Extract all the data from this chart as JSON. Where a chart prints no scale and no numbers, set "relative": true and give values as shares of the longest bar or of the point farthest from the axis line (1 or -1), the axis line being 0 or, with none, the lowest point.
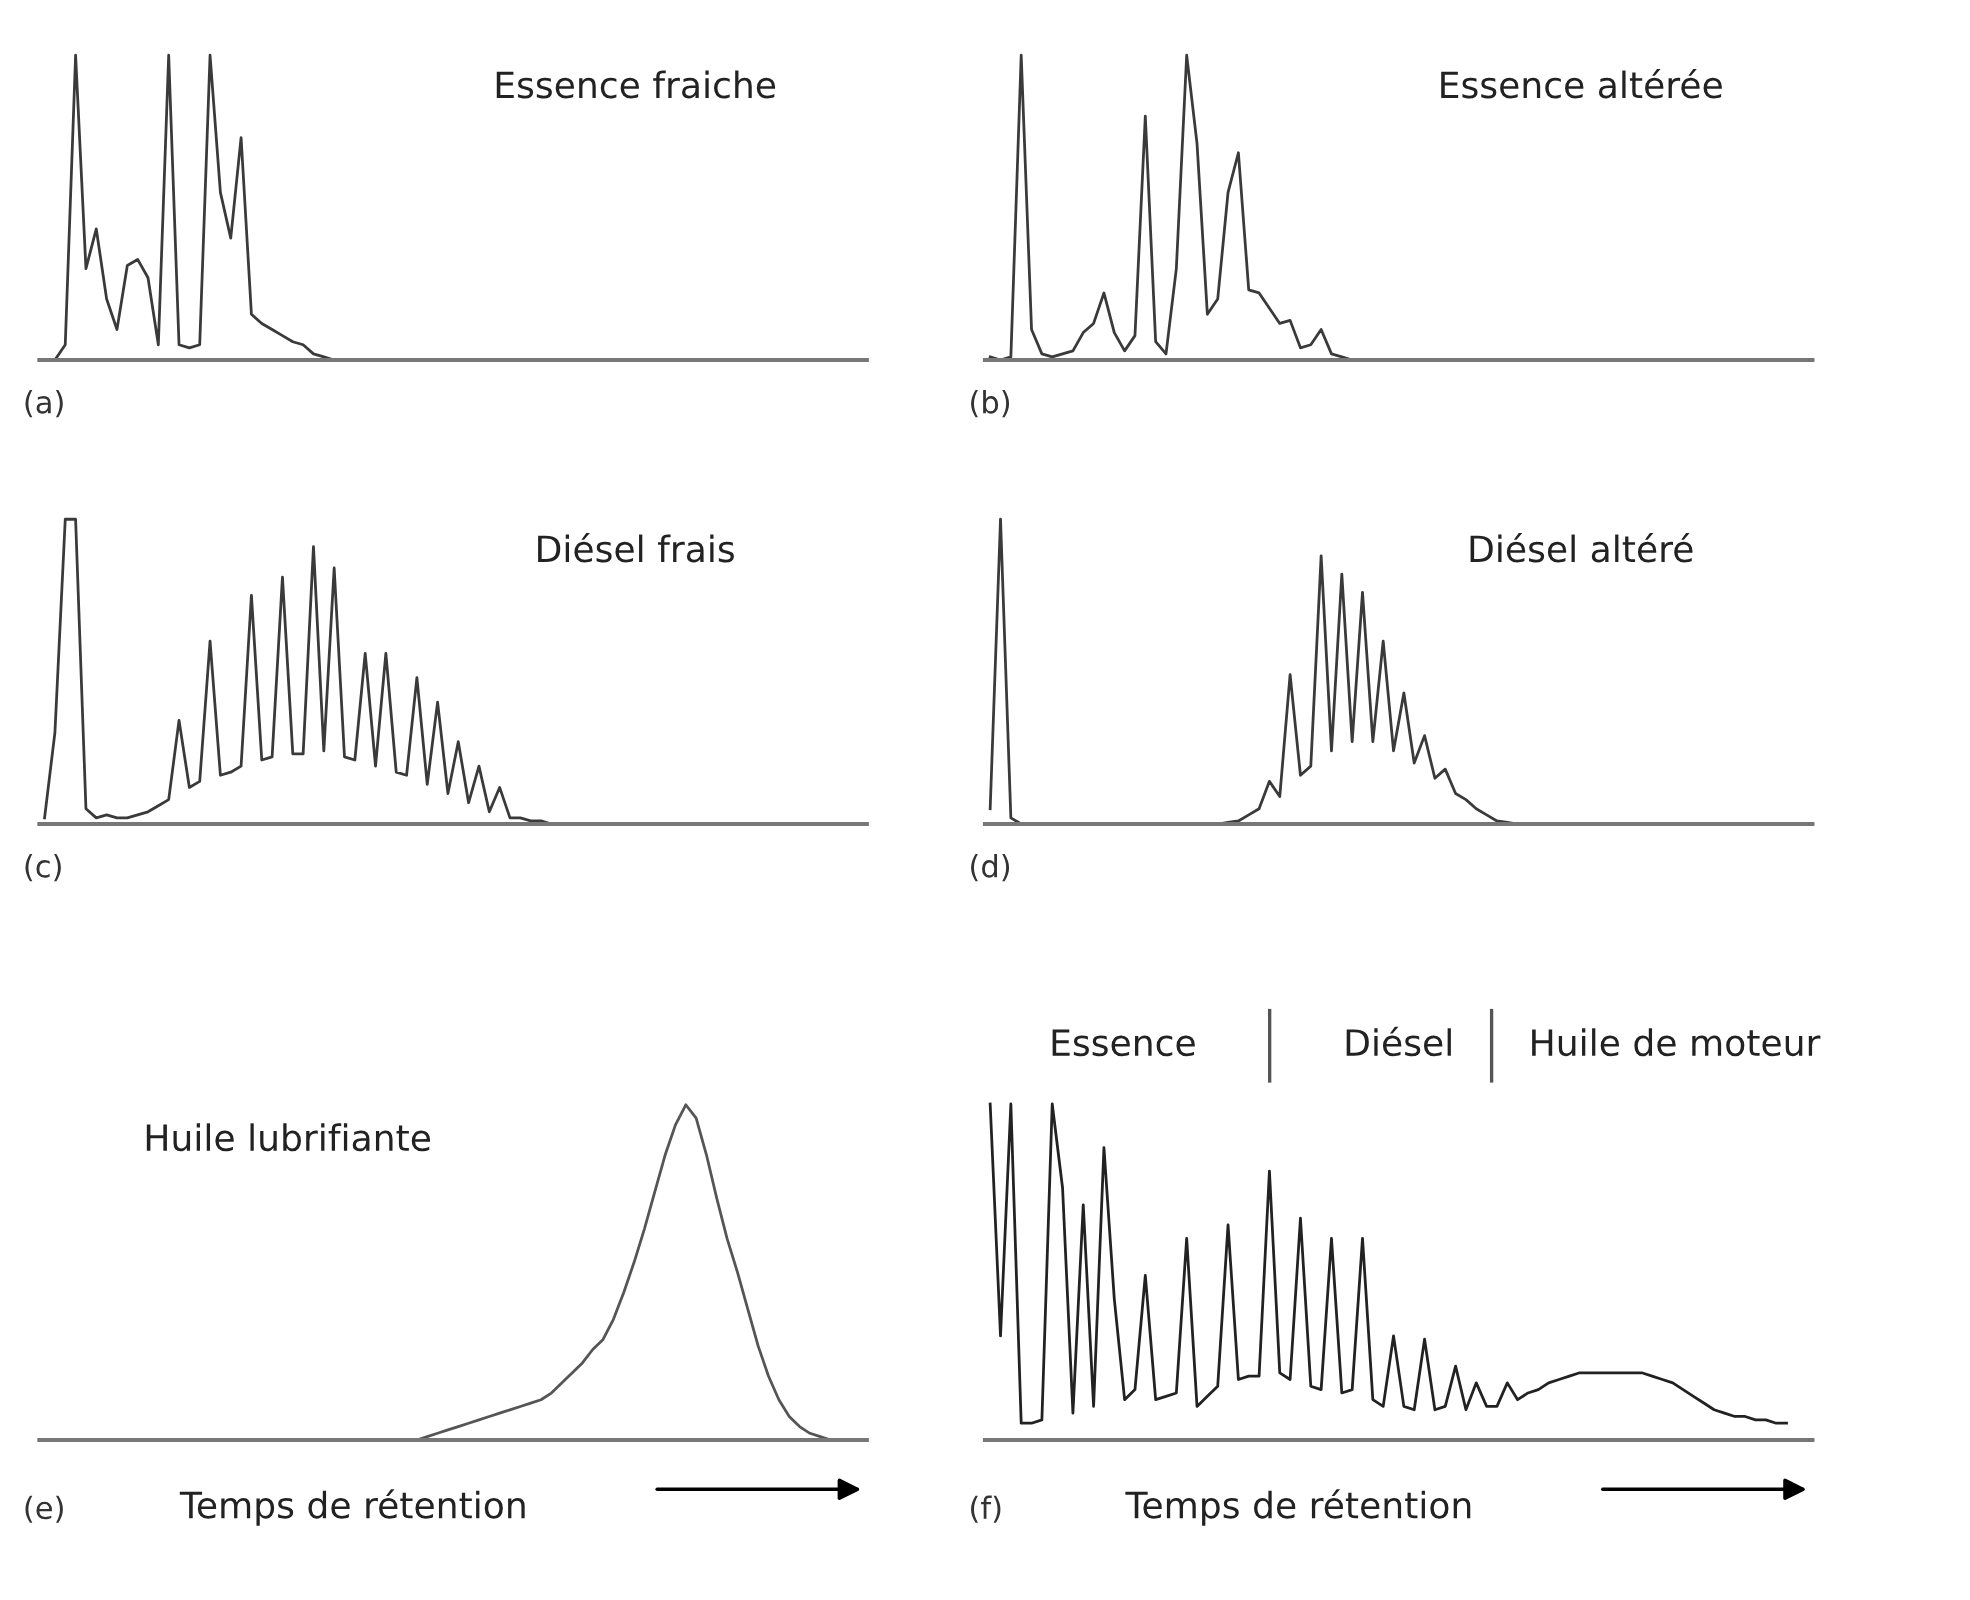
{
  "chart_data": [
    {
      "type": "line",
      "title": "Essence fraiche",
      "relative": true,
      "annotations": [
        "(a)"
      ],
      "categories": [
        null,
        null,
        null,
        null,
        null,
        null,
        null,
        null,
        null,
        null,
        null,
        null,
        null,
        null,
        null,
        null,
        null,
        null,
        null,
        null,
        null,
        null,
        null,
        null,
        null,
        null,
        null,
        null,
        null,
        null,
        null,
        null,
        null,
        null,
        null,
        null,
        null,
        null,
        null,
        null,
        null,
        null,
        null,
        null,
        null,
        null,
        null,
        null,
        null,
        null,
        null,
        null,
        null,
        null,
        null,
        null,
        null,
        null,
        null,
        null,
        null,
        null,
        null,
        null,
        null,
        null,
        null,
        null,
        null,
        null,
        null,
        null,
        null,
        null,
        null,
        null,
        null,
        null,
        null,
        null
      ],
      "series": [
        {
          "color": "#3a3a3a",
          "values": [
            0,
            0,
            0.05,
            1.0,
            0.3,
            0.43,
            0.2,
            0.1,
            0.31,
            0.33,
            0.27,
            0.05,
            1.0,
            0.05,
            0.04,
            0.05,
            1.0,
            0.55,
            0.4,
            0.73,
            0.15,
            0.12,
            0.1,
            0.08,
            0.06,
            0.05,
            0.02,
            0.01,
            0,
            0,
            0,
            0,
            0,
            0,
            0,
            0,
            0,
            0,
            0,
            0,
            0,
            0,
            0,
            0,
            0,
            0,
            0,
            0,
            0,
            0,
            0,
            0,
            0,
            0,
            0,
            0,
            0,
            0,
            0,
            0,
            0,
            0,
            0,
            0,
            0,
            0,
            0,
            0,
            0,
            0,
            0,
            0,
            0,
            0,
            0,
            0,
            0,
            0,
            0,
            0
          ]
        }
      ]
    },
    {
      "type": "line",
      "title": "Essence altérée",
      "relative": true,
      "annotations": [
        "(b)"
      ],
      "categories": [
        null,
        null,
        null,
        null,
        null,
        null,
        null,
        null,
        null,
        null,
        null,
        null,
        null,
        null,
        null,
        null,
        null,
        null,
        null,
        null,
        null,
        null,
        null,
        null,
        null,
        null,
        null,
        null,
        null,
        null,
        null,
        null,
        null,
        null,
        null,
        null,
        null,
        null,
        null,
        null,
        null,
        null,
        null,
        null,
        null,
        null,
        null,
        null,
        null,
        null,
        null,
        null,
        null,
        null,
        null,
        null,
        null,
        null,
        null,
        null,
        null,
        null,
        null,
        null,
        null,
        null,
        null,
        null,
        null,
        null,
        null,
        null,
        null,
        null,
        null,
        null,
        null,
        null,
        null,
        null
      ],
      "series": [
        {
          "color": "#3a3a3a",
          "values": [
            0.01,
            0,
            0.01,
            1.0,
            0.1,
            0.02,
            0.01,
            0.02,
            0.03,
            0.09,
            0.12,
            0.22,
            0.09,
            0.03,
            0.08,
            0.8,
            0.06,
            0.02,
            0.3,
            1.0,
            0.71,
            0.15,
            0.2,
            0.55,
            0.68,
            0.23,
            0.22,
            0.17,
            0.12,
            0.13,
            0.04,
            0.05,
            0.1,
            0.02,
            0.01,
            0,
            0,
            0,
            0,
            0,
            0,
            0,
            0,
            0,
            0,
            0,
            0,
            0,
            0,
            0,
            0,
            0,
            0,
            0,
            0,
            0,
            0,
            0,
            0,
            0,
            0,
            0,
            0,
            0,
            0,
            0,
            0,
            0,
            0,
            0,
            0,
            0,
            0,
            0,
            0,
            0,
            0,
            0,
            0,
            0
          ]
        }
      ]
    },
    {
      "type": "line",
      "title": "Diésel frais",
      "relative": true,
      "annotations": [
        "(c)"
      ],
      "categories": [
        null,
        null,
        null,
        null,
        null,
        null,
        null,
        null,
        null,
        null,
        null,
        null,
        null,
        null,
        null,
        null,
        null,
        null,
        null,
        null,
        null,
        null,
        null,
        null,
        null,
        null,
        null,
        null,
        null,
        null,
        null,
        null,
        null,
        null,
        null,
        null,
        null,
        null,
        null,
        null,
        null,
        null,
        null,
        null,
        null,
        null,
        null,
        null,
        null,
        null,
        null,
        null,
        null,
        null,
        null,
        null,
        null,
        null,
        null,
        null,
        null,
        null,
        null,
        null,
        null,
        null,
        null,
        null,
        null,
        null,
        null,
        null,
        null,
        null,
        null,
        null,
        null,
        null,
        null,
        null
      ],
      "series": [
        {
          "color": "#3a3a3a",
          "values": [
            0.02,
            0.3,
            1.0,
            1.0,
            0.05,
            0.02,
            0.03,
            0.02,
            0.02,
            0.03,
            0.04,
            0.06,
            0.08,
            0.34,
            0.12,
            0.14,
            0.6,
            0.16,
            0.17,
            0.19,
            0.75,
            0.21,
            0.22,
            0.81,
            0.23,
            0.23,
            0.91,
            0.24,
            0.84,
            0.22,
            0.21,
            0.56,
            0.19,
            0.56,
            0.17,
            0.16,
            0.48,
            0.13,
            0.4,
            0.1,
            0.27,
            0.07,
            0.19,
            0.04,
            0.12,
            0.02,
            0.02,
            0.01,
            0.01,
            0,
            0,
            0,
            0,
            0,
            0,
            0,
            0,
            0,
            0,
            0,
            0,
            0,
            0,
            0,
            0,
            0,
            0,
            0,
            0,
            0,
            0,
            0,
            0,
            0,
            0,
            0,
            0,
            0,
            0,
            0
          ]
        }
      ]
    },
    {
      "type": "line",
      "title": "Diésel altéré",
      "relative": true,
      "annotations": [
        "(d)"
      ],
      "categories": [
        null,
        null,
        null,
        null,
        null,
        null,
        null,
        null,
        null,
        null,
        null,
        null,
        null,
        null,
        null,
        null,
        null,
        null,
        null,
        null,
        null,
        null,
        null,
        null,
        null,
        null,
        null,
        null,
        null,
        null,
        null,
        null,
        null,
        null,
        null,
        null,
        null,
        null,
        null,
        null,
        null,
        null,
        null,
        null,
        null,
        null,
        null,
        null,
        null,
        null,
        null,
        null,
        null,
        null,
        null,
        null,
        null,
        null,
        null,
        null,
        null,
        null,
        null,
        null,
        null,
        null,
        null,
        null,
        null,
        null,
        null,
        null,
        null,
        null,
        null,
        null,
        null,
        null,
        null,
        null
      ],
      "series": [
        {
          "color": "#3a3a3a",
          "values": [
            0.05,
            1.0,
            0.02,
            0,
            0,
            0,
            0,
            0,
            0,
            0,
            0,
            0,
            0,
            0,
            0,
            0,
            0,
            0,
            0,
            0,
            0,
            0,
            0,
            0.005,
            0.01,
            0.03,
            0.05,
            0.14,
            0.09,
            0.49,
            0.16,
            0.19,
            0.88,
            0.24,
            0.82,
            0.27,
            0.76,
            0.27,
            0.6,
            0.24,
            0.43,
            0.2,
            0.29,
            0.15,
            0.18,
            0.1,
            0.08,
            0.05,
            0.03,
            0.01,
            0.005,
            0,
            0,
            0,
            0,
            0,
            0,
            0,
            0,
            0,
            0,
            0,
            0,
            0,
            0,
            0,
            0,
            0,
            0,
            0,
            0,
            0,
            0,
            0,
            0,
            0,
            0,
            0,
            0,
            0
          ]
        }
      ]
    },
    {
      "type": "line",
      "title": "Huile lubrifiante",
      "xlabel": "Temps de rétention",
      "relative": true,
      "annotations": [
        "(e)"
      ],
      "categories": [
        null,
        null,
        null,
        null,
        null,
        null,
        null,
        null,
        null,
        null,
        null,
        null,
        null,
        null,
        null,
        null,
        null,
        null,
        null,
        null,
        null,
        null,
        null,
        null,
        null,
        null,
        null,
        null,
        null,
        null,
        null,
        null,
        null,
        null,
        null,
        null,
        null,
        null,
        null,
        null,
        null,
        null,
        null,
        null,
        null,
        null,
        null,
        null,
        null,
        null,
        null,
        null,
        null,
        null,
        null,
        null,
        null,
        null,
        null,
        null,
        null,
        null,
        null,
        null,
        null,
        null,
        null,
        null,
        null,
        null,
        null,
        null,
        null,
        null,
        null,
        null,
        null,
        null,
        null,
        null
      ],
      "series": [
        {
          "color": "#555555",
          "values": [
            0,
            0,
            0,
            0,
            0,
            0,
            0,
            0,
            0,
            0,
            0,
            0,
            0,
            0,
            0,
            0,
            0,
            0,
            0,
            0,
            0,
            0,
            0,
            0,
            0,
            0,
            0,
            0,
            0,
            0,
            0,
            0,
            0,
            0,
            0,
            0,
            0,
            0.01,
            0.02,
            0.03,
            0.04,
            0.05,
            0.06,
            0.07,
            0.08,
            0.09,
            0.1,
            0.11,
            0.12,
            0.14,
            0.17,
            0.2,
            0.23,
            0.27,
            0.3,
            0.36,
            0.44,
            0.53,
            0.63,
            0.74,
            0.85,
            0.94,
            1.0,
            0.96,
            0.85,
            0.72,
            0.6,
            0.5,
            0.39,
            0.28,
            0.19,
            0.12,
            0.07,
            0.04,
            0.02,
            0.01,
            0,
            0,
            0,
            0
          ]
        }
      ]
    },
    {
      "type": "line",
      "xlabel": "Temps de rétention",
      "relative": true,
      "annotations": [
        "(f)",
        "Essence",
        "Diésel",
        "Huile de moteur"
      ],
      "categories": [
        null,
        null,
        null,
        null,
        null,
        null,
        null,
        null,
        null,
        null,
        null,
        null,
        null,
        null,
        null,
        null,
        null,
        null,
        null,
        null,
        null,
        null,
        null,
        null,
        null,
        null,
        null,
        null,
        null,
        null,
        null,
        null,
        null,
        null,
        null,
        null,
        null,
        null,
        null,
        null,
        null,
        null,
        null,
        null,
        null,
        null,
        null,
        null,
        null,
        null,
        null,
        null,
        null,
        null,
        null,
        null,
        null,
        null,
        null,
        null,
        null,
        null,
        null,
        null,
        null,
        null,
        null,
        null,
        null,
        null,
        null,
        null,
        null,
        null,
        null,
        null,
        null,
        null,
        null,
        null
      ],
      "series": [
        {
          "color": "#222222",
          "values": [
            1.0,
            0.31,
            1.0,
            0.05,
            0.05,
            0.06,
            1.0,
            0.75,
            0.08,
            0.7,
            0.1,
            0.87,
            0.42,
            0.12,
            0.15,
            0.49,
            0.12,
            0.13,
            0.14,
            0.6,
            0.1,
            0.13,
            0.16,
            0.64,
            0.18,
            0.19,
            0.19,
            0.8,
            0.2,
            0.18,
            0.66,
            0.16,
            0.15,
            0.6,
            0.14,
            0.15,
            0.6,
            0.12,
            0.1,
            0.31,
            0.1,
            0.09,
            0.3,
            0.09,
            0.1,
            0.22,
            0.09,
            0.17,
            0.1,
            0.1,
            0.17,
            0.12,
            0.14,
            0.15,
            0.17,
            0.18,
            0.19,
            0.2,
            0.2,
            0.2,
            0.2,
            0.2,
            0.2,
            0.2,
            0.19,
            0.18,
            0.17,
            0.15,
            0.13,
            0.11,
            0.09,
            0.08,
            0.07,
            0.07,
            0.06,
            0.06,
            0.05,
            0.05,
            null,
            null
          ]
        }
      ]
    }
  ]
}
